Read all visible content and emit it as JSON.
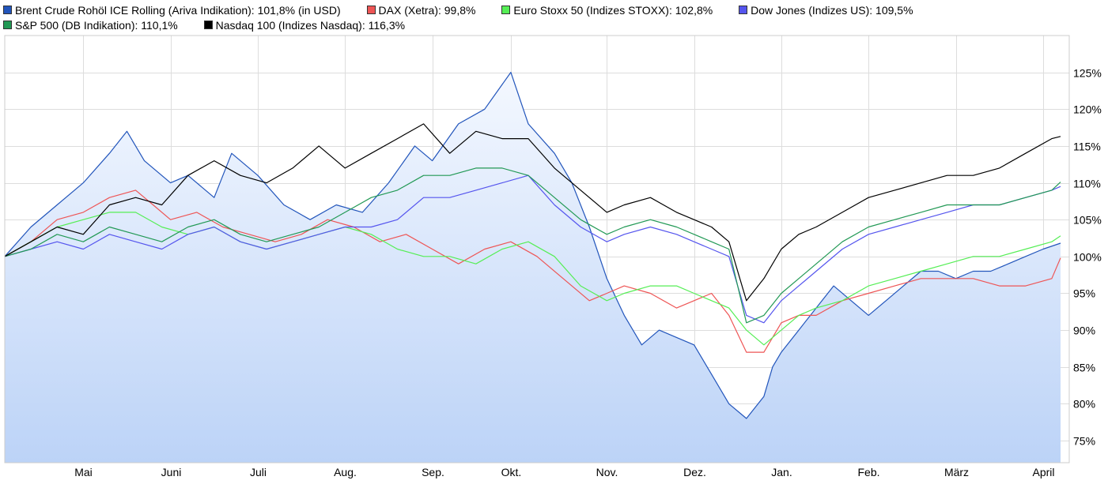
{
  "legend": [
    {
      "label": "Brent Crude Rohöl ICE Rolling (Ariva Indikation): 101,8% (in USD)",
      "color": "#2255bb"
    },
    {
      "label": "DAX (Xetra): 99,8%",
      "color": "#ee5555"
    },
    {
      "label": "Euro Stoxx 50 (Indizes STOXX): 102,8%",
      "color": "#55ee55"
    },
    {
      "label": "Dow Jones (Indizes US): 109,5%",
      "color": "#5555ee"
    },
    {
      "label": "S&P 500 (DB Indikation): 110,1%",
      "color": "#229955"
    },
    {
      "label": "Nasdaq 100 (Indizes Nasdaq): 116,3%",
      "color": "#000000"
    }
  ],
  "chart_data": {
    "type": "line",
    "ylim": [
      72,
      130
    ],
    "yticks": [
      75,
      80,
      85,
      90,
      95,
      100,
      105,
      110,
      115,
      120,
      125
    ],
    "ytick_labels": [
      "75%",
      "80%",
      "85%",
      "90%",
      "95%",
      "100%",
      "105%",
      "110%",
      "115%",
      "120%",
      "125%"
    ],
    "xlim": [
      0,
      12.2
    ],
    "xticks": [
      {
        "label": "Mai",
        "x": 0.9
      },
      {
        "label": "Juni",
        "x": 1.9
      },
      {
        "label": "Juli",
        "x": 2.9
      },
      {
        "label": "Aug.",
        "x": 3.9
      },
      {
        "label": "Sep.",
        "x": 4.9
      },
      {
        "label": "Okt.",
        "x": 5.8
      },
      {
        "label": "Nov.",
        "x": 6.9
      },
      {
        "label": "Dez.",
        "x": 7.9
      },
      {
        "label": "Jan.",
        "x": 8.9
      },
      {
        "label": "Feb.",
        "x": 9.9
      },
      {
        "label": "März",
        "x": 10.9
      },
      {
        "label": "April",
        "x": 11.9
      }
    ],
    "grid": true,
    "legend_position": "top",
    "series": [
      {
        "name": "Brent Crude Rohöl ICE Rolling (Ariva Indikation)",
        "color": "#2255bb",
        "fill": true,
        "x": [
          0,
          0.3,
          0.6,
          0.9,
          1.2,
          1.4,
          1.6,
          1.9,
          2.1,
          2.4,
          2.6,
          2.9,
          3.2,
          3.5,
          3.8,
          4.1,
          4.4,
          4.7,
          4.9,
          5.2,
          5.5,
          5.8,
          6.0,
          6.3,
          6.5,
          6.7,
          6.9,
          7.1,
          7.3,
          7.5,
          7.7,
          7.9,
          8.1,
          8.3,
          8.5,
          8.7,
          8.8,
          8.9,
          9.1,
          9.3,
          9.5,
          9.7,
          9.9,
          10.1,
          10.3,
          10.5,
          10.7,
          10.9,
          11.1,
          11.3,
          11.5,
          11.7,
          11.9,
          12.1
        ],
        "y": [
          100,
          104,
          107,
          110,
          114,
          117,
          113,
          110,
          111,
          108,
          114,
          111,
          107,
          105,
          107,
          106,
          110,
          115,
          113,
          118,
          120,
          125,
          118,
          114,
          110,
          104,
          97,
          92,
          88,
          90,
          89,
          88,
          84,
          80,
          78,
          81,
          85,
          87,
          90,
          93,
          96,
          94,
          92,
          94,
          96,
          98,
          98,
          97,
          98,
          98,
          99,
          100,
          101,
          101.8
        ]
      },
      {
        "name": "DAX (Xetra)",
        "color": "#ee5555",
        "x": [
          0,
          0.3,
          0.6,
          0.9,
          1.2,
          1.5,
          1.7,
          1.9,
          2.2,
          2.5,
          2.8,
          3.1,
          3.4,
          3.7,
          4.0,
          4.3,
          4.6,
          4.9,
          5.2,
          5.5,
          5.8,
          6.1,
          6.4,
          6.7,
          6.9,
          7.1,
          7.4,
          7.7,
          7.9,
          8.1,
          8.3,
          8.5,
          8.7,
          8.9,
          9.1,
          9.3,
          9.6,
          9.9,
          10.2,
          10.5,
          10.8,
          11.1,
          11.4,
          11.7,
          12.0,
          12.1
        ],
        "y": [
          100,
          102,
          105,
          106,
          108,
          109,
          107,
          105,
          106,
          104,
          103,
          102,
          103,
          105,
          104,
          102,
          103,
          101,
          99,
          101,
          102,
          100,
          97,
          94,
          95,
          96,
          95,
          93,
          94,
          95,
          92,
          87,
          87,
          91,
          92,
          92,
          94,
          95,
          96,
          97,
          97,
          97,
          96,
          96,
          97,
          99.8
        ]
      },
      {
        "name": "Euro Stoxx 50 (Indizes STOXX)",
        "color": "#55ee55",
        "x": [
          0,
          0.3,
          0.6,
          0.9,
          1.2,
          1.5,
          1.8,
          2.1,
          2.4,
          2.7,
          3.0,
          3.3,
          3.6,
          3.9,
          4.2,
          4.5,
          4.8,
          5.1,
          5.4,
          5.7,
          6.0,
          6.3,
          6.6,
          6.9,
          7.1,
          7.4,
          7.7,
          7.9,
          8.1,
          8.3,
          8.5,
          8.7,
          8.9,
          9.1,
          9.3,
          9.6,
          9.9,
          10.2,
          10.5,
          10.8,
          11.1,
          11.4,
          11.7,
          12.0,
          12.1
        ],
        "y": [
          100,
          102,
          104,
          105,
          106,
          106,
          104,
          103,
          104,
          102,
          101,
          102,
          103,
          104,
          103,
          101,
          100,
          100,
          99,
          101,
          102,
          100,
          96,
          94,
          95,
          96,
          96,
          95,
          94,
          93,
          90,
          88,
          90,
          92,
          93,
          94,
          96,
          97,
          98,
          99,
          100,
          100,
          101,
          102,
          102.8
        ]
      },
      {
        "name": "Dow Jones (Indizes US)",
        "color": "#5555ee",
        "x": [
          0,
          0.3,
          0.6,
          0.9,
          1.2,
          1.5,
          1.8,
          2.1,
          2.4,
          2.7,
          3.0,
          3.3,
          3.6,
          3.9,
          4.2,
          4.5,
          4.8,
          5.1,
          5.4,
          5.7,
          6.0,
          6.3,
          6.6,
          6.9,
          7.1,
          7.4,
          7.7,
          7.9,
          8.1,
          8.3,
          8.5,
          8.7,
          8.9,
          9.1,
          9.3,
          9.6,
          9.9,
          10.2,
          10.5,
          10.8,
          11.1,
          11.4,
          11.7,
          12.0,
          12.1
        ],
        "y": [
          100,
          101,
          102,
          101,
          103,
          102,
          101,
          103,
          104,
          102,
          101,
          102,
          103,
          104,
          104,
          105,
          108,
          108,
          109,
          110,
          111,
          107,
          104,
          102,
          103,
          104,
          103,
          102,
          101,
          100,
          92,
          91,
          94,
          96,
          98,
          101,
          103,
          104,
          105,
          106,
          107,
          107,
          108,
          109,
          109.5
        ]
      },
      {
        "name": "S&P 500 (DB Indikation)",
        "color": "#229955",
        "x": [
          0,
          0.3,
          0.6,
          0.9,
          1.2,
          1.5,
          1.8,
          2.1,
          2.4,
          2.7,
          3.0,
          3.3,
          3.6,
          3.9,
          4.2,
          4.5,
          4.8,
          5.1,
          5.4,
          5.7,
          6.0,
          6.3,
          6.6,
          6.9,
          7.1,
          7.4,
          7.7,
          7.9,
          8.1,
          8.3,
          8.5,
          8.7,
          8.9,
          9.1,
          9.3,
          9.6,
          9.9,
          10.2,
          10.5,
          10.8,
          11.1,
          11.4,
          11.7,
          12.0,
          12.1
        ],
        "y": [
          100,
          101,
          103,
          102,
          104,
          103,
          102,
          104,
          105,
          103,
          102,
          103,
          104,
          106,
          108,
          109,
          111,
          111,
          112,
          112,
          111,
          108,
          105,
          103,
          104,
          105,
          104,
          103,
          102,
          101,
          91,
          92,
          95,
          97,
          99,
          102,
          104,
          105,
          106,
          107,
          107,
          107,
          108,
          109,
          110.1
        ]
      },
      {
        "name": "Nasdaq 100 (Indizes Nasdaq)",
        "color": "#000000",
        "x": [
          0,
          0.3,
          0.6,
          0.9,
          1.2,
          1.5,
          1.8,
          2.1,
          2.4,
          2.7,
          3.0,
          3.3,
          3.6,
          3.9,
          4.2,
          4.5,
          4.8,
          5.1,
          5.4,
          5.7,
          6.0,
          6.3,
          6.6,
          6.9,
          7.1,
          7.4,
          7.7,
          7.9,
          8.1,
          8.3,
          8.5,
          8.7,
          8.9,
          9.1,
          9.3,
          9.6,
          9.9,
          10.2,
          10.5,
          10.8,
          11.1,
          11.4,
          11.7,
          12.0,
          12.1
        ],
        "y": [
          100,
          102,
          104,
          103,
          107,
          108,
          107,
          111,
          113,
          111,
          110,
          112,
          115,
          112,
          114,
          116,
          118,
          114,
          117,
          116,
          116,
          112,
          109,
          106,
          107,
          108,
          106,
          105,
          104,
          102,
          94,
          97,
          101,
          103,
          104,
          106,
          108,
          109,
          110,
          111,
          111,
          112,
          114,
          116,
          116.3
        ]
      }
    ]
  }
}
